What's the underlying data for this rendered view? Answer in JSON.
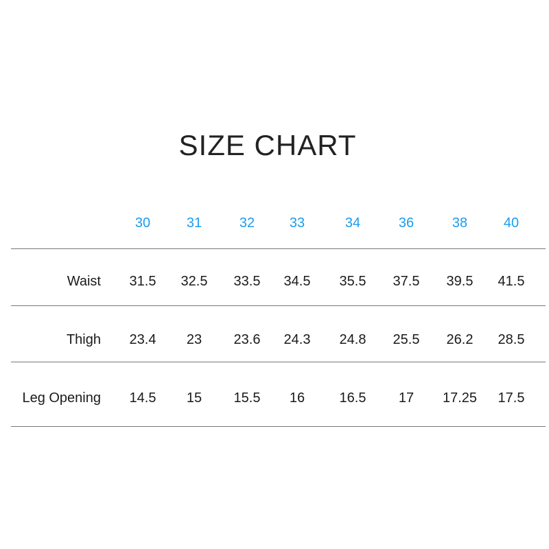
{
  "title": "SIZE CHART",
  "colors": {
    "header": "#1a9cf0",
    "text": "#1a1a1a",
    "rule": "#777777"
  },
  "table": {
    "sizes": [
      "30",
      "31",
      "32",
      "33",
      "34",
      "36",
      "38",
      "40"
    ],
    "rows": [
      {
        "label": "Waist",
        "values": [
          "31.5",
          "32.5",
          "33.5",
          "34.5",
          "35.5",
          "37.5",
          "39.5",
          "41.5"
        ]
      },
      {
        "label": "Thigh",
        "values": [
          "23.4",
          "23",
          "23.6",
          "24.3",
          "24.8",
          "25.5",
          "26.2",
          "28.5"
        ]
      },
      {
        "label": "Leg Opening",
        "values": [
          "14.5",
          "15",
          "15.5",
          "16",
          "16.5",
          "17",
          "17.25",
          "17.5"
        ]
      }
    ]
  }
}
